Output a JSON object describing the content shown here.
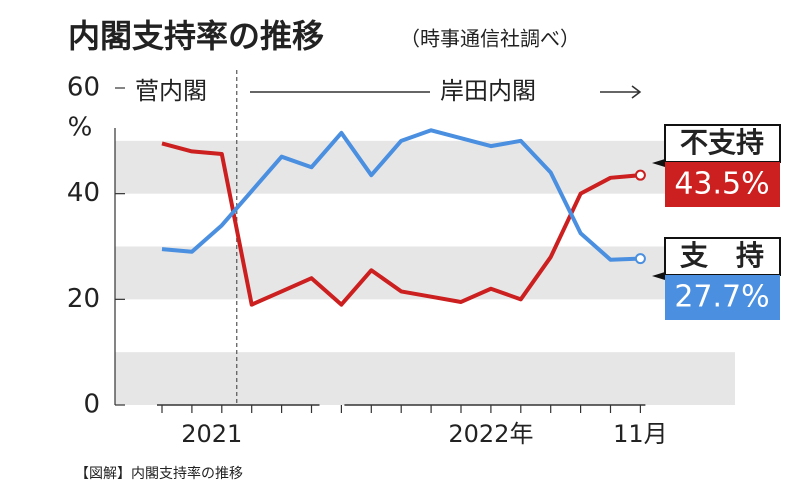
{
  "chart_data": {
    "type": "line",
    "title": "内閣支持率の推移",
    "subtitle": "（時事通信社調べ）",
    "y_unit": "%",
    "categories": [
      null,
      null,
      "2021",
      null,
      null,
      null,
      null,
      null,
      null,
      null,
      null,
      "2022年",
      null,
      null,
      null,
      null,
      "11月"
    ],
    "series": [
      {
        "name": "不支持",
        "color": "#cc1f1f",
        "values": [
          49.5,
          48,
          47.5,
          19,
          21.5,
          24,
          19,
          25.5,
          21.5,
          20.5,
          19.5,
          22,
          20,
          28,
          40,
          43,
          43.5
        ],
        "value_labels": [
          null,
          null,
          null,
          null,
          null,
          null,
          null,
          null,
          null,
          null,
          null,
          null,
          null,
          null,
          null,
          null,
          "43.5%"
        ]
      },
      {
        "name": "支　持",
        "color": "#4a8fe0",
        "values": [
          29.5,
          29,
          34,
          40.5,
          47,
          45,
          51.5,
          43.5,
          50,
          52,
          50.5,
          49,
          50,
          44,
          32.5,
          27.5,
          27.7
        ],
        "value_labels": [
          null,
          null,
          null,
          null,
          null,
          null,
          null,
          null,
          null,
          null,
          null,
          null,
          null,
          null,
          null,
          null,
          "27.7%"
        ]
      }
    ],
    "ylim": [
      0,
      60
    ],
    "yticks": [
      0,
      20,
      40,
      60
    ],
    "bands": [
      [
        0,
        10
      ],
      [
        20,
        30
      ],
      [
        40,
        50
      ]
    ],
    "annotations": [
      "菅内閣",
      "岸田内閣"
    ],
    "source": "【図解】内閣支持率の推移"
  }
}
